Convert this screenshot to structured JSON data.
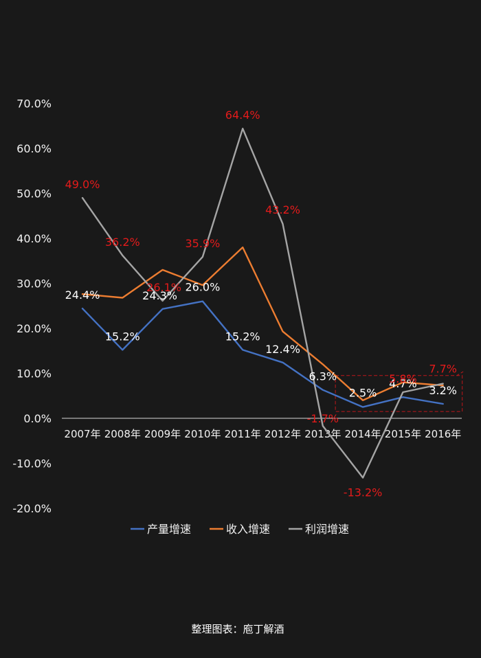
{
  "chart_data": {
    "type": "line",
    "title": "",
    "xlabel": "",
    "ylabel": "",
    "categories": [
      "2007年",
      "2008年",
      "2009年",
      "2010年",
      "2011年",
      "2012年",
      "2013年",
      "2014年",
      "2015年",
      "2016年"
    ],
    "ylim": [
      -20,
      70
    ],
    "yticks": [
      "70.0%",
      "60.0%",
      "50.0%",
      "40.0%",
      "30.0%",
      "20.0%",
      "10.0%",
      "0.0%",
      "-10.0%",
      "-20.0%"
    ],
    "ytick_values": [
      70,
      60,
      50,
      40,
      30,
      20,
      10,
      0,
      -10,
      -20
    ],
    "grid": false,
    "legend_position": "bottom",
    "series": [
      {
        "name": "产量增速",
        "color": "#4472c4",
        "values": [
          24.4,
          15.2,
          24.3,
          26.0,
          15.2,
          12.4,
          6.3,
          2.5,
          4.7,
          3.2
        ],
        "labels": [
          "24.4%",
          "15.2%",
          "24.3%",
          "26.0%",
          "15.2%",
          "12.4%",
          "6.3%",
          "2.5%",
          "4.7%",
          "3.2%"
        ],
        "label_color": "#ffffff"
      },
      {
        "name": "收入增速",
        "color": "#ed7d31",
        "values": [
          27.6,
          26.8,
          33.0,
          29.6,
          38.0,
          19.3,
          12.0,
          4.0,
          8.0,
          7.3
        ],
        "labels": [],
        "label_color": "#e41b1b"
      },
      {
        "name": "利润增速",
        "color": "#a5a5a5",
        "values": [
          49.0,
          36.2,
          26.1,
          35.9,
          64.4,
          43.2,
          -1.7,
          -13.2,
          5.8,
          7.7
        ],
        "labels": [
          "49.0%",
          "36.2%",
          "26.1%",
          "35.9%",
          "64.4%",
          "43.2%",
          "-1.7%",
          "-13.2%",
          "5.8%",
          "7.7%"
        ],
        "label_color": "#e41b1b"
      }
    ],
    "highlight_box": {
      "from_category": "2014年",
      "to_category": "2016年",
      "y_range": [
        1.5,
        9.5
      ],
      "color": "#c0171b"
    },
    "credit": "整理图表：庖丁解酒"
  }
}
